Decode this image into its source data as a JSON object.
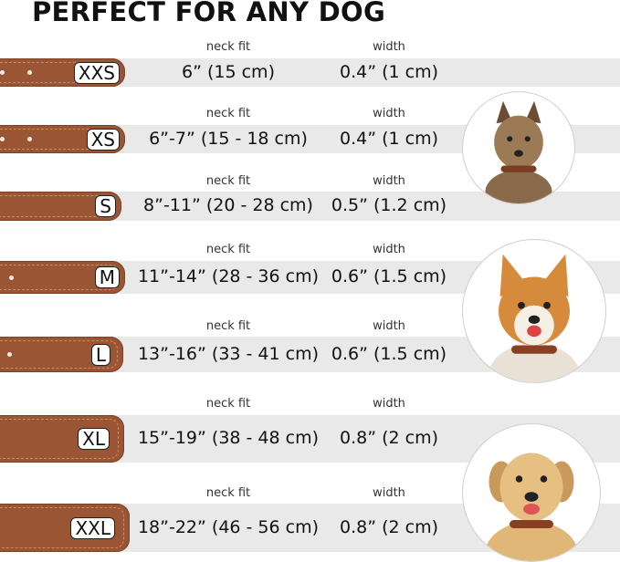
{
  "title": "PERFECT FOR ANY DOG",
  "columns": {
    "neck_fit": "neck fit",
    "width": "width"
  },
  "collar_color": "#9a5634",
  "band_color": "#e9e9e9",
  "rows": [
    {
      "size": "XXS",
      "neck_fit": "6” (15 cm)",
      "width": "0.4” (1 cm)"
    },
    {
      "size": "XS",
      "neck_fit": "6”-7” (15 - 18 cm)",
      "width": "0.4” (1 cm)"
    },
    {
      "size": "S",
      "neck_fit": "8”-11” (20 - 28 cm)",
      "width": "0.5” (1.2 cm)"
    },
    {
      "size": "M",
      "neck_fit": "11”-14” (28 - 36 cm)",
      "width": "0.6” (1.5 cm)"
    },
    {
      "size": "L",
      "neck_fit": "13”-16” (33 - 41 cm)",
      "width": "0.6” (1.5 cm)"
    },
    {
      "size": "XL",
      "neck_fit": "15”-19” (38 - 48 cm)",
      "width": "0.8” (2 cm)"
    },
    {
      "size": "XXL",
      "neck_fit": "18”-22” (46 - 56 cm)",
      "width": "0.8” (2 cm)"
    }
  ],
  "dogs": [
    "small-terrier-photo",
    "corgi-photo",
    "labrador-photo"
  ]
}
